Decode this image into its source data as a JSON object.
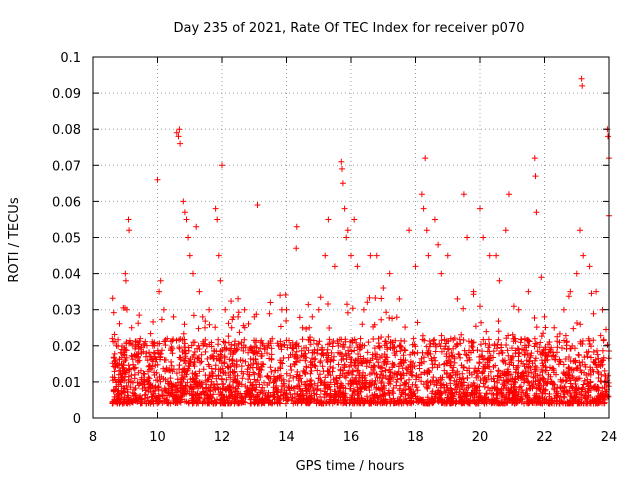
{
  "chart_data": {
    "type": "scatter",
    "title": "Day 235 of 2021, Rate Of TEC Index for receiver p070",
    "xlabel": "GPS time / hours",
    "ylabel": "ROTI / TECUs",
    "xlim": [
      8,
      24
    ],
    "ylim": [
      0,
      0.1
    ],
    "x_ticks": [
      "8",
      "10",
      "12",
      "14",
      "16",
      "18",
      "20",
      "22",
      "24"
    ],
    "y_ticks": [
      "0",
      "0.01",
      "0.02",
      "0.03",
      "0.04",
      "0.05",
      "0.06",
      "0.07",
      "0.08",
      "0.09",
      "0.1"
    ],
    "grid": true,
    "marker": "+",
    "color": "#ff0000",
    "series": [
      {
        "points": [
          [
            8.6,
            0.022
          ],
          [
            8.7,
            0.015
          ],
          [
            8.8,
            0.012
          ],
          [
            8.9,
            0.018
          ],
          [
            9.0,
            0.04
          ],
          [
            9.02,
            0.038
          ],
          [
            9.05,
            0.03
          ],
          [
            9.1,
            0.055
          ],
          [
            9.12,
            0.052
          ],
          [
            9.2,
            0.025
          ],
          [
            9.3,
            0.012
          ],
          [
            9.5,
            0.018
          ],
          [
            9.7,
            0.016
          ],
          [
            9.9,
            0.02
          ],
          [
            10.0,
            0.066
          ],
          [
            10.05,
            0.035
          ],
          [
            10.1,
            0.038
          ],
          [
            10.2,
            0.03
          ],
          [
            10.3,
            0.022
          ],
          [
            10.5,
            0.028
          ],
          [
            10.6,
            0.079
          ],
          [
            10.65,
            0.078
          ],
          [
            10.68,
            0.08
          ],
          [
            10.7,
            0.076
          ],
          [
            10.8,
            0.06
          ],
          [
            10.85,
            0.057
          ],
          [
            10.9,
            0.055
          ],
          [
            10.95,
            0.05
          ],
          [
            11.0,
            0.045
          ],
          [
            11.1,
            0.04
          ],
          [
            11.2,
            0.053
          ],
          [
            11.3,
            0.035
          ],
          [
            11.4,
            0.028
          ],
          [
            11.6,
            0.03
          ],
          [
            11.8,
            0.058
          ],
          [
            11.85,
            0.055
          ],
          [
            11.9,
            0.045
          ],
          [
            11.95,
            0.038
          ],
          [
            12.0,
            0.07
          ],
          [
            12.1,
            0.03
          ],
          [
            12.3,
            0.025
          ],
          [
            12.5,
            0.028
          ],
          [
            12.7,
            0.03
          ],
          [
            13.0,
            0.028
          ],
          [
            13.1,
            0.059
          ],
          [
            13.3,
            0.02
          ],
          [
            13.5,
            0.032
          ],
          [
            13.8,
            0.034
          ],
          [
            14.0,
            0.03
          ],
          [
            14.3,
            0.047
          ],
          [
            14.32,
            0.053
          ],
          [
            14.5,
            0.025
          ],
          [
            14.8,
            0.028
          ],
          [
            15.0,
            0.03
          ],
          [
            15.2,
            0.045
          ],
          [
            15.3,
            0.055
          ],
          [
            15.5,
            0.042
          ],
          [
            15.7,
            0.071
          ],
          [
            15.72,
            0.069
          ],
          [
            15.75,
            0.065
          ],
          [
            15.8,
            0.058
          ],
          [
            15.85,
            0.05
          ],
          [
            15.9,
            0.052
          ],
          [
            16.0,
            0.045
          ],
          [
            16.1,
            0.055
          ],
          [
            16.2,
            0.042
          ],
          [
            16.4,
            0.03
          ],
          [
            16.6,
            0.045
          ],
          [
            16.8,
            0.045
          ],
          [
            17.0,
            0.036
          ],
          [
            17.2,
            0.04
          ],
          [
            17.5,
            0.033
          ],
          [
            17.8,
            0.052
          ],
          [
            18.0,
            0.042
          ],
          [
            18.2,
            0.062
          ],
          [
            18.25,
            0.058
          ],
          [
            18.3,
            0.072
          ],
          [
            18.35,
            0.052
          ],
          [
            18.4,
            0.045
          ],
          [
            18.6,
            0.055
          ],
          [
            18.7,
            0.048
          ],
          [
            18.8,
            0.04
          ],
          [
            19.0,
            0.045
          ],
          [
            19.3,
            0.033
          ],
          [
            19.5,
            0.062
          ],
          [
            19.6,
            0.05
          ],
          [
            19.8,
            0.035
          ],
          [
            20.0,
            0.058
          ],
          [
            20.1,
            0.05
          ],
          [
            20.3,
            0.045
          ],
          [
            20.5,
            0.045
          ],
          [
            20.6,
            0.038
          ],
          [
            20.8,
            0.052
          ],
          [
            20.9,
            0.062
          ],
          [
            21.2,
            0.03
          ],
          [
            21.5,
            0.035
          ],
          [
            21.7,
            0.072
          ],
          [
            21.72,
            0.067
          ],
          [
            21.75,
            0.057
          ],
          [
            21.9,
            0.039
          ],
          [
            22.0,
            0.028
          ],
          [
            22.3,
            0.025
          ],
          [
            22.6,
            0.03
          ],
          [
            22.8,
            0.035
          ],
          [
            23.0,
            0.04
          ],
          [
            23.1,
            0.052
          ],
          [
            23.15,
            0.094
          ],
          [
            23.17,
            0.092
          ],
          [
            23.2,
            0.045
          ],
          [
            23.4,
            0.042
          ],
          [
            23.6,
            0.035
          ],
          [
            23.8,
            0.03
          ],
          [
            23.95,
            0.08
          ],
          [
            23.97,
            0.078
          ],
          [
            24.0,
            0.072
          ],
          [
            24.0,
            0.056
          ]
        ]
      }
    ]
  }
}
